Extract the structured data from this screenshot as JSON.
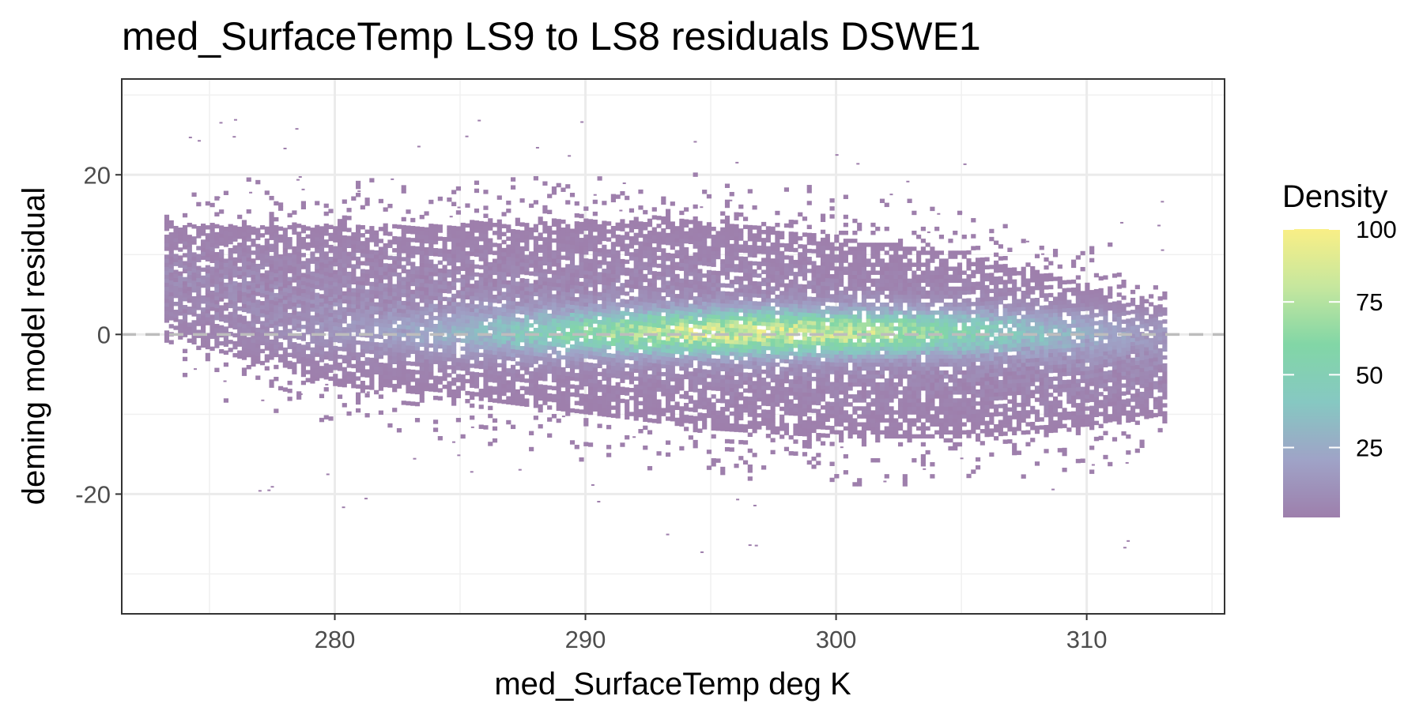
{
  "chart_data": {
    "type": "heatmap",
    "title": "med_SurfaceTemp LS9 to LS8 residuals DSWE1",
    "xlabel": "med_SurfaceTemp deg K",
    "ylabel": "deming model residual",
    "xlim": [
      271.5,
      315.5
    ],
    "ylim": [
      -35,
      32
    ],
    "x_ticks": [
      280,
      290,
      300,
      310
    ],
    "x_tick_labels": [
      "280",
      "290",
      "300",
      "310"
    ],
    "y_ticks": [
      -20,
      0,
      20
    ],
    "y_tick_labels": [
      "-20",
      "0",
      "20"
    ],
    "reference_line": {
      "y": 0,
      "style": "dashed",
      "color": "#bdbdbd"
    },
    "data_extent": {
      "x_min": 273.2,
      "x_max": 313.2
    },
    "residual_band": {
      "x": [
        273.2,
        275,
        280,
        285,
        290,
        295,
        300,
        305,
        310,
        313.2
      ],
      "upper": [
        13.5,
        13.5,
        13.5,
        13.5,
        14,
        14,
        12,
        10,
        6,
        3
      ],
      "lower": [
        0,
        -2,
        -6.5,
        -8,
        -10,
        -12,
        -13,
        -13,
        -12,
        -10
      ]
    },
    "density_peak": {
      "x": 297,
      "y": 0,
      "value": 100
    },
    "legend": {
      "title": "Density",
      "breaks": [
        25,
        50,
        75,
        100
      ],
      "labels": [
        "25",
        "50",
        "75",
        "100"
      ],
      "range": [
        1,
        100
      ],
      "colors": [
        "#9e7fac",
        "#9fa3c7",
        "#86c8c2",
        "#82d6a6",
        "#c6e79e",
        "#f9ef86"
      ],
      "position": "right"
    },
    "grid": true,
    "theme": "bw"
  }
}
